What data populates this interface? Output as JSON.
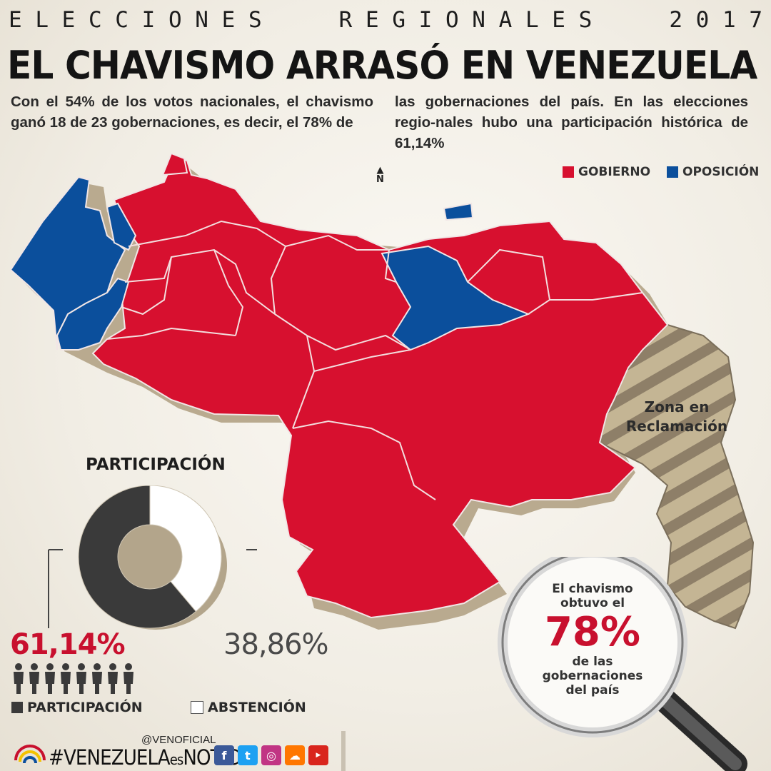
{
  "header": {
    "kicker_words": [
      "E L E C C I O N E S",
      "R E G I O N A L E S",
      "2 0 1 7"
    ],
    "title": "EL CHAVISMO ARRASÓ EN VENEZUELA",
    "lead_left": "Con el 54% de los votos nacionales, el chavismo ganó 18 de 23 gobernaciones, es decir, el 78% de",
    "lead_right": "las gobernaciones del país. En las elecciones regio-nales hubo una participación histórica de 61,14%"
  },
  "map": {
    "north_label": "N",
    "legend": [
      {
        "label": "GOBIERNO",
        "color": "#d7102f"
      },
      {
        "label": "OPOSICIÓN",
        "color": "#0b4f9c"
      }
    ],
    "zone_label": "Zona en Reclamación",
    "colors": {
      "gobierno": "#d7102f",
      "oposicion": "#0b4f9c",
      "zone": "#bfae8c",
      "zone_stripe": "#8a7c67",
      "extrusion": "#b8aa90"
    }
  },
  "participation": {
    "title": "PARTICIPACIÓN",
    "participation_pct": "61,14%",
    "abstention_pct": "38,86%",
    "participation_value": 61.14,
    "abstention_value": 38.86,
    "legend_participacion": "PARTICIPACIÓN",
    "legend_abstencion": "ABSTENCIÓN",
    "people_icons": 8,
    "colors": {
      "participacion": "#3a3a3a",
      "abstencion": "#ffffff"
    }
  },
  "callout": {
    "line1": "El chavismo",
    "line2": "obtuvo el",
    "value": "78%",
    "line3": "de las",
    "line4": "gobernaciones",
    "line5": "del país"
  },
  "footer": {
    "handle": "@VENOFICIAL",
    "hashtag_a": "#VENEZUELA",
    "hashtag_b": "es",
    "hashtag_c": "NOTICIA",
    "social": [
      "facebook-icon",
      "twitter-icon",
      "instagram-icon",
      "soundcloud-icon",
      "youtube-icon"
    ]
  }
}
